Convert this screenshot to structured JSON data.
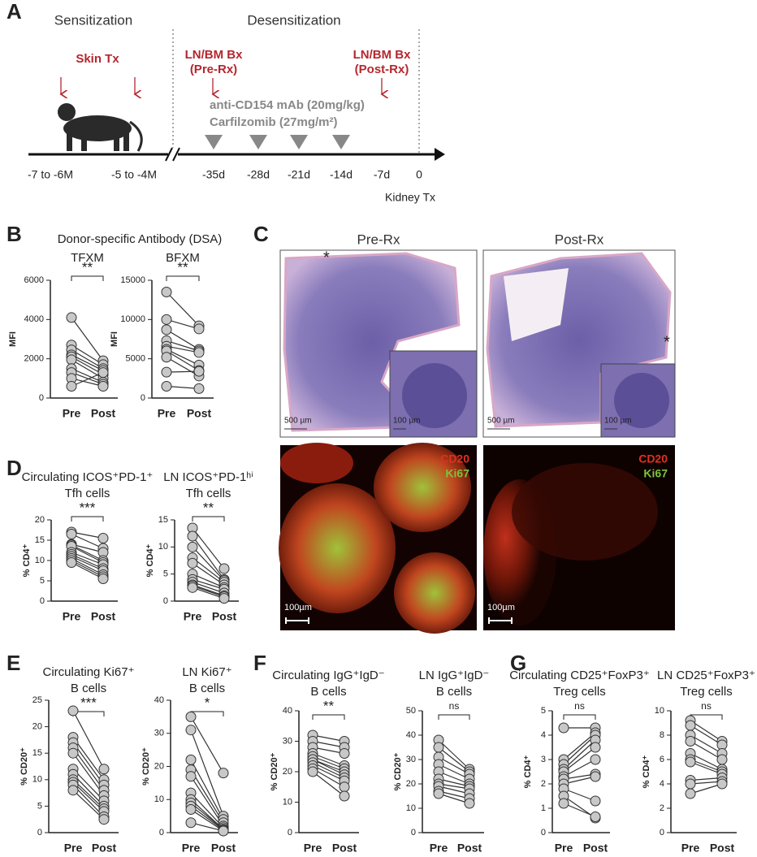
{
  "panel_a": {
    "letter": "A",
    "phases": [
      "Sensitization",
      "Desensitization"
    ],
    "skin": "Skin Tx",
    "pre_bx": [
      "LN/BM Bx",
      "(Pre-Rx)"
    ],
    "post_bx": [
      "LN/BM Bx",
      "(Post-Rx)"
    ],
    "drugs": [
      "anti-CD154 mAb (20mg/kg)",
      "Carfilzomib (27mg/m²)"
    ],
    "timepoints": [
      "-7 to -6M",
      "-5 to -4M",
      "-35d",
      "-28d",
      "-21d",
      "-14d",
      "-7d",
      "0"
    ],
    "endpoint": "Kidney Tx"
  },
  "panel_b": {
    "letter": "B",
    "title": "Donor-specific Antibody (DSA)"
  },
  "panel_c": {
    "letter": "C",
    "titles": [
      "Pre-Rx",
      "Post-Rx"
    ],
    "scales": [
      "500 µm",
      "100 µm",
      "500 µm",
      "100 µm"
    ],
    "stains": [
      "CD20",
      "Ki67",
      "CD20",
      "Ki67"
    ],
    "if_scales": [
      "100µm",
      "100µm"
    ]
  },
  "letters": [
    "D",
    "E",
    "F",
    "G"
  ],
  "chart_data": [
    {
      "type": "paired",
      "title": [
        "TFXM"
      ],
      "ylabel": "MFI",
      "categories": [
        "Pre",
        "Post"
      ],
      "significance": "**",
      "ylim": [
        0,
        6000
      ],
      "yticks": [
        0,
        2000,
        4000,
        6000
      ],
      "pre": [
        4100,
        2700,
        2450,
        2200,
        2100,
        1950,
        1500,
        1300,
        1000,
        600
      ],
      "post": [
        1900,
        1700,
        1500,
        1400,
        1200,
        1000,
        800,
        700,
        600,
        1300
      ]
    },
    {
      "type": "paired",
      "title": [
        "BFXM"
      ],
      "ylabel": "MFI",
      "categories": [
        "Pre",
        "Post"
      ],
      "significance": "**",
      "ylim": [
        0,
        15000
      ],
      "yticks": [
        0,
        5000,
        10000,
        15000
      ],
      "pre": [
        13500,
        10000,
        8700,
        7300,
        6600,
        6200,
        6000,
        5200,
        3300,
        1500
      ],
      "post": [
        9200,
        8800,
        6200,
        6000,
        5800,
        4200,
        3500,
        2800,
        3400,
        1200
      ]
    },
    {
      "type": "paired",
      "title": [
        "Circulating ICOS⁺PD-1⁺",
        "Tfh cells"
      ],
      "ylabel": "% CD4⁺",
      "categories": [
        "Pre",
        "Post"
      ],
      "significance": "***",
      "ylim": [
        0,
        20
      ],
      "yticks": [
        0,
        5,
        10,
        15,
        20
      ],
      "pre": [
        17,
        16.5,
        14,
        13.8,
        13.5,
        12,
        11.5,
        11,
        10.5,
        10,
        9.5
      ],
      "post": [
        15.5,
        13,
        12,
        10,
        9.5,
        9,
        8,
        7.5,
        6.5,
        6,
        5.5
      ]
    },
    {
      "type": "paired",
      "title": [
        "LN ICOS⁺PD-1ʰⁱ",
        "Tfh cells"
      ],
      "ylabel": "% CD4⁺",
      "categories": [
        "Pre",
        "Post"
      ],
      "significance": "**",
      "ylim": [
        0,
        15
      ],
      "yticks": [
        0,
        5,
        10,
        15
      ],
      "pre": [
        13.5,
        12,
        10,
        8,
        7,
        5,
        4,
        3.5,
        3,
        2.8,
        2.5
      ],
      "post": [
        6,
        4,
        3.8,
        3.5,
        3,
        2.5,
        2.2,
        1.5,
        1,
        0.8,
        0.5
      ]
    },
    {
      "type": "paired",
      "title": [
        "Circulating Ki67⁺",
        "B cells"
      ],
      "ylabel": "% CD20⁺",
      "categories": [
        "Pre",
        "Post"
      ],
      "significance": "***",
      "ylim": [
        0,
        25
      ],
      "yticks": [
        0,
        5,
        10,
        15,
        20,
        25
      ],
      "pre": [
        23,
        18,
        17,
        16,
        15,
        12,
        11,
        10,
        9.5,
        9,
        8
      ],
      "post": [
        12,
        10,
        9,
        8,
        7,
        6,
        5,
        4.5,
        4,
        3,
        2.5
      ]
    },
    {
      "type": "paired",
      "title": [
        "LN Ki67⁺",
        "B cells"
      ],
      "ylabel": "% CD20⁺",
      "categories": [
        "Pre",
        "Post"
      ],
      "significance": "*",
      "ylim": [
        0,
        40
      ],
      "yticks": [
        0,
        10,
        20,
        30,
        40
      ],
      "pre": [
        35,
        31,
        22,
        19,
        17,
        12,
        10,
        9,
        8,
        7,
        3
      ],
      "post": [
        18,
        5,
        4,
        3,
        2,
        1.5,
        1,
        1,
        0.8,
        0.5,
        0.5
      ]
    },
    {
      "type": "paired",
      "title": [
        "Circulating IgG⁺IgD⁻",
        "B cells"
      ],
      "ylabel": "% CD20⁺",
      "categories": [
        "Pre",
        "Post"
      ],
      "significance": "**",
      "ylim": [
        0,
        40
      ],
      "yticks": [
        0,
        10,
        20,
        30,
        40
      ],
      "pre": [
        32,
        30,
        28,
        26,
        25,
        24,
        24,
        23,
        22,
        21,
        20
      ],
      "post": [
        30,
        28,
        26,
        22,
        21,
        20,
        19,
        18,
        17,
        15,
        12
      ]
    },
    {
      "type": "paired",
      "title": [
        "LN IgG⁺IgD⁻",
        "B cells"
      ],
      "ylabel": "% CD20⁺",
      "categories": [
        "Pre",
        "Post"
      ],
      "significance": "ns",
      "ylim": [
        0,
        50
      ],
      "yticks": [
        0,
        10,
        20,
        30,
        40,
        50
      ],
      "pre": [
        38,
        35,
        31,
        28,
        25,
        22,
        20,
        19,
        17,
        16
      ],
      "post": [
        26,
        25,
        24,
        22,
        20,
        19,
        18,
        16,
        14,
        12
      ]
    },
    {
      "type": "paired",
      "title": [
        "Circulating CD25⁺FoxP3⁺",
        "Treg cells"
      ],
      "ylabel": "% CD4⁺",
      "categories": [
        "Pre",
        "Post"
      ],
      "significance": "ns",
      "ylim": [
        0,
        5
      ],
      "yticks": [
        0,
        1,
        2,
        3,
        4,
        5
      ],
      "pre": [
        4.3,
        3,
        2.8,
        2.6,
        2.5,
        2.3,
        2.2,
        2,
        1.8,
        1.5,
        1.2
      ],
      "post": [
        4.3,
        4.1,
        4,
        3.8,
        3.5,
        3,
        2.4,
        2.3,
        1.3,
        0.6,
        0.65
      ]
    },
    {
      "type": "paired",
      "title": [
        "LN CD25⁺FoxP3⁺",
        "Treg cells"
      ],
      "ylabel": "% CD4⁺",
      "categories": [
        "Pre",
        "Post"
      ],
      "significance": "ns",
      "ylim": [
        0,
        10
      ],
      "yticks": [
        0,
        2,
        4,
        6,
        8,
        10
      ],
      "pre": [
        9.2,
        8.8,
        8,
        7.5,
        6.5,
        6,
        5.8,
        4.3,
        4,
        3.2
      ],
      "post": [
        7.5,
        7.2,
        6.5,
        6,
        5.2,
        5,
        4.8,
        4.5,
        4.2,
        4
      ]
    }
  ]
}
